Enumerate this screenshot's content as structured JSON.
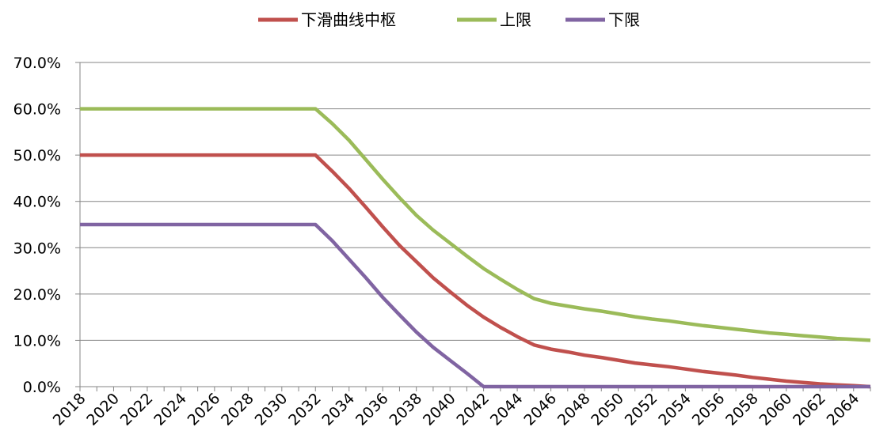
{
  "chart_data": {
    "type": "line",
    "title": "",
    "xlabel": "",
    "ylabel": "",
    "ylim": [
      0,
      0.7
    ],
    "y_ticks": [
      "0.0%",
      "10.0%",
      "20.0%",
      "30.0%",
      "40.0%",
      "50.0%",
      "60.0%",
      "70.0%"
    ],
    "x_ticks": [
      "2018",
      "2020",
      "2022",
      "2024",
      "2026",
      "2028",
      "2030",
      "2032",
      "2034",
      "2036",
      "2038",
      "2040",
      "2042",
      "2044",
      "2046",
      "2048",
      "2050",
      "2052",
      "2054",
      "2056",
      "2058",
      "2060",
      "2062",
      "2064"
    ],
    "grid": "horizontal",
    "legend_position": "top",
    "x": [
      2018,
      2019,
      2020,
      2021,
      2022,
      2023,
      2024,
      2025,
      2026,
      2027,
      2028,
      2029,
      2030,
      2031,
      2032,
      2033,
      2034,
      2035,
      2036,
      2037,
      2038,
      2039,
      2040,
      2041,
      2042,
      2043,
      2044,
      2045,
      2046,
      2047,
      2048,
      2049,
      2050,
      2051,
      2052,
      2053,
      2054,
      2055,
      2056,
      2057,
      2058,
      2059,
      2060,
      2061,
      2062,
      2063,
      2064,
      2065
    ],
    "series": [
      {
        "name": "下滑曲线中枢",
        "color": "#C0504D",
        "values": [
          0.5,
          0.5,
          0.5,
          0.5,
          0.5,
          0.5,
          0.5,
          0.5,
          0.5,
          0.5,
          0.5,
          0.5,
          0.5,
          0.5,
          0.5,
          0.465,
          0.428,
          0.387,
          0.345,
          0.305,
          0.27,
          0.235,
          0.205,
          0.176,
          0.15,
          0.128,
          0.108,
          0.09,
          0.081,
          0.075,
          0.068,
          0.063,
          0.057,
          0.051,
          0.047,
          0.043,
          0.038,
          0.033,
          0.029,
          0.025,
          0.02,
          0.016,
          0.012,
          0.009,
          0.006,
          0.004,
          0.002,
          0.0
        ]
      },
      {
        "name": "上限",
        "color": "#9BBB59",
        "values": [
          0.6,
          0.6,
          0.6,
          0.6,
          0.6,
          0.6,
          0.6,
          0.6,
          0.6,
          0.6,
          0.6,
          0.6,
          0.6,
          0.6,
          0.6,
          0.568,
          0.532,
          0.49,
          0.448,
          0.408,
          0.37,
          0.338,
          0.31,
          0.282,
          0.255,
          0.232,
          0.21,
          0.19,
          0.18,
          0.174,
          0.168,
          0.163,
          0.157,
          0.151,
          0.146,
          0.142,
          0.137,
          0.132,
          0.128,
          0.124,
          0.12,
          0.116,
          0.113,
          0.11,
          0.107,
          0.104,
          0.102,
          0.1
        ]
      },
      {
        "name": "下限",
        "color": "#8064A2",
        "values": [
          0.35,
          0.35,
          0.35,
          0.35,
          0.35,
          0.35,
          0.35,
          0.35,
          0.35,
          0.35,
          0.35,
          0.35,
          0.35,
          0.35,
          0.35,
          0.315,
          0.275,
          0.235,
          0.193,
          0.155,
          0.118,
          0.085,
          0.057,
          0.029,
          0.0,
          0.0,
          0.0,
          0.0,
          0.0,
          0.0,
          0.0,
          0.0,
          0.0,
          0.0,
          0.0,
          0.0,
          0.0,
          0.0,
          0.0,
          0.0,
          0.0,
          0.0,
          0.0,
          0.0,
          0.0,
          0.0,
          0.0,
          0.0
        ]
      }
    ]
  }
}
